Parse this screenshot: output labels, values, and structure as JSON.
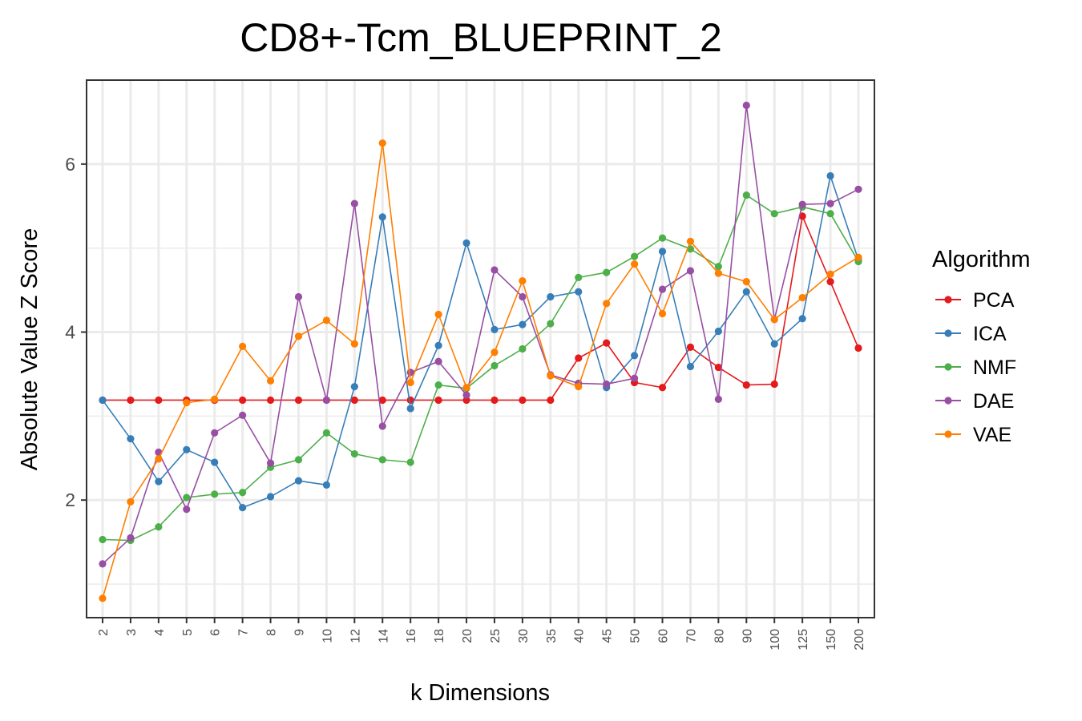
{
  "chart_data": {
    "type": "line",
    "title": "CD8+-Tcm_BLUEPRINT_2",
    "xlabel": "k Dimensions",
    "ylabel": "Absolute Value Z Score",
    "categories": [
      "2",
      "3",
      "4",
      "5",
      "6",
      "7",
      "8",
      "9",
      "10",
      "12",
      "14",
      "16",
      "18",
      "20",
      "25",
      "30",
      "35",
      "40",
      "45",
      "50",
      "60",
      "70",
      "80",
      "90",
      "100",
      "125",
      "150",
      "200"
    ],
    "y_ticks": [
      "2",
      "4",
      "6"
    ],
    "ylim": [
      0.6,
      7.0
    ],
    "grid": true,
    "legend": {
      "title": "Algorithm",
      "position": "right"
    },
    "series": [
      {
        "name": "PCA",
        "color": "#e41a1c",
        "values": [
          3.19,
          3.19,
          3.19,
          3.19,
          3.19,
          3.19,
          3.19,
          3.19,
          3.19,
          3.19,
          3.19,
          3.19,
          3.19,
          3.19,
          3.19,
          3.19,
          3.19,
          3.69,
          3.87,
          3.4,
          3.34,
          3.82,
          3.58,
          3.37,
          3.38,
          5.38,
          4.6,
          3.81
        ]
      },
      {
        "name": "ICA",
        "color": "#377eb8",
        "values": [
          3.19,
          2.73,
          2.22,
          2.6,
          2.45,
          1.91,
          2.04,
          2.23,
          2.18,
          3.35,
          5.37,
          3.09,
          3.84,
          5.06,
          4.03,
          4.09,
          4.42,
          4.48,
          3.34,
          3.72,
          4.96,
          3.59,
          4.01,
          4.48,
          3.86,
          4.16,
          5.86,
          4.86
        ]
      },
      {
        "name": "NMF",
        "color": "#4daf4a",
        "values": [
          1.53,
          1.52,
          1.68,
          2.03,
          2.07,
          2.09,
          2.39,
          2.48,
          2.8,
          2.55,
          2.48,
          2.45,
          3.37,
          3.33,
          3.6,
          3.8,
          4.1,
          4.65,
          4.71,
          4.9,
          5.12,
          4.99,
          4.78,
          5.63,
          5.41,
          5.49,
          5.41,
          4.84
        ]
      },
      {
        "name": "DAE",
        "color": "#984ea3",
        "values": [
          1.24,
          1.55,
          2.57,
          1.89,
          2.8,
          3.01,
          2.44,
          4.42,
          3.19,
          5.53,
          2.88,
          3.52,
          3.65,
          3.25,
          4.74,
          4.42,
          3.49,
          3.39,
          3.38,
          3.45,
          4.51,
          4.73,
          3.2,
          6.7,
          4.15,
          5.52,
          5.53,
          5.7
        ]
      },
      {
        "name": "VAE",
        "color": "#ff7f00",
        "values": [
          0.83,
          1.98,
          2.49,
          3.16,
          3.2,
          3.83,
          3.42,
          3.95,
          4.14,
          3.86,
          6.25,
          3.4,
          4.21,
          3.34,
          3.76,
          4.61,
          3.48,
          3.35,
          4.34,
          4.81,
          4.22,
          5.08,
          4.7,
          4.6,
          4.15,
          4.41,
          4.69,
          4.89
        ]
      }
    ]
  }
}
